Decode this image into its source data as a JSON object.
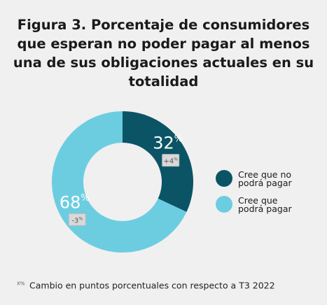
{
  "chart_data": {
    "type": "donut",
    "title": "Figura 3. Porcentaje de consumidores que esperan no poder pagar al menos una de sus obligaciones actuales en su totalidad",
    "categories": [
      "Cree que no podrá pagar",
      "Cree que podrá pagar"
    ],
    "values": [
      32,
      68
    ],
    "value_labels": [
      "32%",
      "68%"
    ],
    "change_labels": [
      "+4%",
      "-3%"
    ],
    "colors": [
      "#0b5466",
      "#6ccde1"
    ],
    "footnote_marker": "X%",
    "footnote": "Cambio en puntos porcentuales con respecto a T3 2022"
  }
}
